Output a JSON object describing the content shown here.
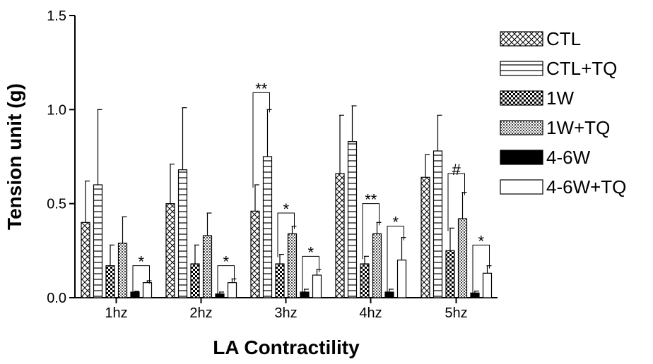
{
  "chart_data": {
    "type": "bar",
    "title": "",
    "xlabel": "LA Contractility",
    "ylabel": "Tension unit (g)",
    "ylim": [
      0,
      1.5
    ],
    "yticks": [
      "0.0",
      "0.5",
      "1.0",
      "1.5"
    ],
    "categories": [
      "1hz",
      "2hz",
      "3hz",
      "4hz",
      "5hz"
    ],
    "series": [
      {
        "name": "CTL",
        "pattern": "crosshatch",
        "values": [
          0.4,
          0.5,
          0.46,
          0.66,
          0.64
        ],
        "errors": [
          0.22,
          0.21,
          0.14,
          0.31,
          0.12
        ]
      },
      {
        "name": "CTL+TQ",
        "pattern": "horizontal",
        "values": [
          0.6,
          0.68,
          0.75,
          0.83,
          0.78
        ],
        "errors": [
          0.4,
          0.33,
          0.25,
          0.19,
          0.19
        ]
      },
      {
        "name": "1W",
        "pattern": "checker",
        "values": [
          0.17,
          0.18,
          0.18,
          0.18,
          0.25
        ],
        "errors": [
          0.11,
          0.1,
          0.05,
          0.04,
          0.12
        ]
      },
      {
        "name": "1W+TQ",
        "pattern": "dots",
        "values": [
          0.29,
          0.33,
          0.34,
          0.34,
          0.42
        ],
        "errors": [
          0.14,
          0.12,
          0.04,
          0.06,
          0.14
        ]
      },
      {
        "name": "4-6W",
        "pattern": "solid",
        "values": [
          0.03,
          0.02,
          0.03,
          0.03,
          0.025
        ],
        "errors": [
          0.004,
          0.01,
          0.015,
          0.015,
          0.01
        ]
      },
      {
        "name": "4-6W+TQ",
        "pattern": "white",
        "values": [
          0.08,
          0.08,
          0.12,
          0.2,
          0.13
        ],
        "errors": [
          0.01,
          0.02,
          0.03,
          0.12,
          0.04
        ]
      }
    ],
    "significance": [
      {
        "category": "1hz",
        "from": "4-6W",
        "to": "4-6W+TQ",
        "label": "*",
        "level": 0.17
      },
      {
        "category": "2hz",
        "from": "4-6W",
        "to": "4-6W+TQ",
        "label": "*",
        "level": 0.17
      },
      {
        "category": "3hz",
        "from": "CTL",
        "to": "CTL+TQ",
        "label": "**",
        "level": 1.09
      },
      {
        "category": "3hz",
        "from": "1W",
        "to": "1W+TQ",
        "label": "*",
        "level": 0.45
      },
      {
        "category": "3hz",
        "from": "4-6W",
        "to": "4-6W+TQ",
        "label": "*",
        "level": 0.22
      },
      {
        "category": "4hz",
        "from": "1W",
        "to": "1W+TQ",
        "label": "**",
        "level": 0.5
      },
      {
        "category": "4hz",
        "from": "4-6W",
        "to": "4-6W+TQ",
        "label": "*",
        "level": 0.38
      },
      {
        "category": "5hz",
        "from": "1W",
        "to": "1W+TQ",
        "label": "#",
        "level": 0.66
      },
      {
        "category": "5hz",
        "from": "4-6W",
        "to": "4-6W+TQ",
        "label": "*",
        "level": 0.28
      }
    ],
    "legend_position": "right",
    "grid": false
  }
}
